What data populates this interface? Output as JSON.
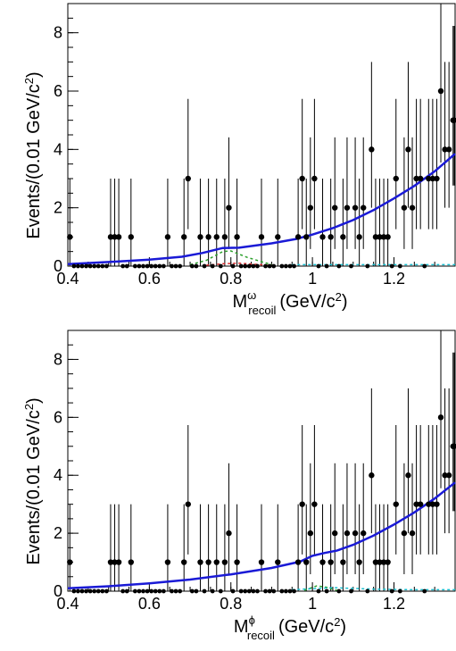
{
  "chart_data": [
    {
      "type": "scatter",
      "title": "",
      "xlabel_main": "M",
      "xlabel_sup": "ω",
      "xlabel_sub": "recoil",
      "xlabel_unit": "(GeV/c",
      "xlabel_unit_exp": "2",
      "xlabel_close": ")",
      "ylabel": "Events/(0.01 GeV/c",
      "ylabel_exp": "2",
      "ylabel_close": ")",
      "xlim": [
        0.4,
        1.35
      ],
      "ylim": [
        0,
        9
      ],
      "x_ticks": [
        0.4,
        0.6,
        0.8,
        1,
        1.2
      ],
      "x_tick_labels": [
        "0.4",
        "0.6",
        "0.8",
        "1",
        "1.2"
      ],
      "y_ticks": [
        0,
        2,
        4,
        6,
        8
      ],
      "y_tick_labels": [
        "0",
        "2",
        "4",
        "6",
        "8"
      ],
      "grid": false,
      "series": [
        {
          "kind": "data-points-with-errors",
          "color": "#000000",
          "points": [
            [
              0.405,
              1
            ],
            [
              0.505,
              1
            ],
            [
              0.515,
              1
            ],
            [
              0.525,
              1
            ],
            [
              0.555,
              1
            ],
            [
              0.645,
              1
            ],
            [
              0.685,
              1
            ],
            [
              0.695,
              3
            ],
            [
              0.725,
              1
            ],
            [
              0.745,
              1
            ],
            [
              0.765,
              1
            ],
            [
              0.785,
              1
            ],
            [
              0.795,
              2
            ],
            [
              0.815,
              1
            ],
            [
              0.875,
              1
            ],
            [
              0.915,
              1
            ],
            [
              0.965,
              1
            ],
            [
              0.975,
              3
            ],
            [
              0.985,
              1
            ],
            [
              0.995,
              2
            ],
            [
              1.005,
              3
            ],
            [
              1.025,
              1
            ],
            [
              1.045,
              1
            ],
            [
              1.055,
              2
            ],
            [
              1.075,
              1
            ],
            [
              1.085,
              2
            ],
            [
              1.105,
              2
            ],
            [
              1.115,
              1
            ],
            [
              1.125,
              2
            ],
            [
              1.145,
              4
            ],
            [
              1.155,
              1
            ],
            [
              1.165,
              1
            ],
            [
              1.175,
              1
            ],
            [
              1.185,
              1
            ],
            [
              1.205,
              3
            ],
            [
              1.225,
              2
            ],
            [
              1.235,
              4
            ],
            [
              1.245,
              2
            ],
            [
              1.255,
              3
            ],
            [
              1.265,
              3
            ],
            [
              1.285,
              3
            ],
            [
              1.295,
              3
            ],
            [
              1.305,
              3
            ],
            [
              1.315,
              6
            ],
            [
              1.325,
              4
            ],
            [
              1.335,
              4
            ],
            [
              1.345,
              5
            ],
            [
              1.355,
              5
            ]
          ]
        },
        {
          "kind": "total-fit",
          "color": "#1a1ad6",
          "points": [
            [
              0.4,
              0.07
            ],
            [
              0.5,
              0.14
            ],
            [
              0.6,
              0.22
            ],
            [
              0.68,
              0.32
            ],
            [
              0.73,
              0.45
            ],
            [
              0.78,
              0.62
            ],
            [
              0.82,
              0.63
            ],
            [
              0.9,
              0.78
            ],
            [
              0.96,
              0.93
            ],
            [
              1.0,
              1.08
            ],
            [
              1.05,
              1.3
            ],
            [
              1.1,
              1.58
            ],
            [
              1.15,
              1.92
            ],
            [
              1.2,
              2.32
            ],
            [
              1.25,
              2.75
            ],
            [
              1.3,
              3.25
            ],
            [
              1.35,
              3.85
            ]
          ]
        },
        {
          "kind": "omega-component",
          "color": "#2ca02c",
          "dashed": true,
          "points": [
            [
              0.7,
              0.05
            ],
            [
              0.74,
              0.2
            ],
            [
              0.78,
              0.5
            ],
            [
              0.8,
              0.52
            ],
            [
              0.84,
              0.3
            ],
            [
              0.9,
              0.05
            ]
          ]
        },
        {
          "kind": "phi-component",
          "color": "#d62728",
          "dashed": true,
          "points": [
            [
              0.74,
              0.03
            ],
            [
              0.78,
              0.08
            ],
            [
              0.82,
              0.1
            ],
            [
              0.86,
              0.06
            ],
            [
              0.9,
              0.02
            ]
          ]
        },
        {
          "kind": "other-component",
          "color": "#17becf",
          "dashed": true,
          "points": [
            [
              0.95,
              0.05
            ],
            [
              1.05,
              0.05
            ],
            [
              1.15,
              0.05
            ],
            [
              1.25,
              0.05
            ],
            [
              1.35,
              0.05
            ]
          ]
        }
      ]
    },
    {
      "type": "scatter",
      "title": "",
      "xlabel_main": "M",
      "xlabel_sup": "ϕ",
      "xlabel_sub": "recoil",
      "xlabel_unit": "(GeV/c",
      "xlabel_unit_exp": "2",
      "xlabel_close": ")",
      "ylabel": "Events/(0.01 GeV/c",
      "ylabel_exp": "2",
      "ylabel_close": ")",
      "xlim": [
        0.4,
        1.35
      ],
      "ylim": [
        0,
        9
      ],
      "x_ticks": [
        0.4,
        0.6,
        0.8,
        1,
        1.2
      ],
      "x_tick_labels": [
        "0.4",
        "0.6",
        "0.8",
        "1",
        "1.2"
      ],
      "y_ticks": [
        0,
        2,
        4,
        6,
        8
      ],
      "y_tick_labels": [
        "0",
        "2",
        "4",
        "6",
        "8"
      ],
      "grid": false,
      "series": [
        {
          "kind": "data-points-with-errors",
          "color": "#000000",
          "points": [
            [
              0.405,
              1
            ],
            [
              0.505,
              1
            ],
            [
              0.515,
              1
            ],
            [
              0.525,
              1
            ],
            [
              0.555,
              1
            ],
            [
              0.645,
              1
            ],
            [
              0.685,
              1
            ],
            [
              0.695,
              3
            ],
            [
              0.725,
              1
            ],
            [
              0.745,
              1
            ],
            [
              0.765,
              1
            ],
            [
              0.785,
              1
            ],
            [
              0.795,
              2
            ],
            [
              0.815,
              1
            ],
            [
              0.875,
              1
            ],
            [
              0.915,
              1
            ],
            [
              0.965,
              1
            ],
            [
              0.975,
              3
            ],
            [
              0.985,
              1
            ],
            [
              0.995,
              2
            ],
            [
              1.005,
              3
            ],
            [
              1.025,
              1
            ],
            [
              1.045,
              1
            ],
            [
              1.055,
              2
            ],
            [
              1.075,
              1
            ],
            [
              1.085,
              2
            ],
            [
              1.105,
              2
            ],
            [
              1.115,
              1
            ],
            [
              1.125,
              2
            ],
            [
              1.145,
              4
            ],
            [
              1.155,
              1
            ],
            [
              1.165,
              1
            ],
            [
              1.175,
              1
            ],
            [
              1.185,
              1
            ],
            [
              1.205,
              3
            ],
            [
              1.225,
              2
            ],
            [
              1.235,
              4
            ],
            [
              1.245,
              2
            ],
            [
              1.255,
              3
            ],
            [
              1.265,
              3
            ],
            [
              1.285,
              3
            ],
            [
              1.295,
              3
            ],
            [
              1.305,
              3
            ],
            [
              1.315,
              6
            ],
            [
              1.325,
              4
            ],
            [
              1.335,
              4
            ],
            [
              1.345,
              5
            ],
            [
              1.355,
              5
            ]
          ]
        },
        {
          "kind": "total-fit",
          "color": "#1a1ad6",
          "points": [
            [
              0.4,
              0.1
            ],
            [
              0.5,
              0.17
            ],
            [
              0.6,
              0.27
            ],
            [
              0.7,
              0.4
            ],
            [
              0.8,
              0.58
            ],
            [
              0.9,
              0.8
            ],
            [
              0.97,
              1.02
            ],
            [
              1.0,
              1.22
            ],
            [
              1.03,
              1.32
            ],
            [
              1.06,
              1.4
            ],
            [
              1.1,
              1.6
            ],
            [
              1.15,
              1.92
            ],
            [
              1.2,
              2.3
            ],
            [
              1.25,
              2.72
            ],
            [
              1.3,
              3.2
            ],
            [
              1.35,
              3.75
            ]
          ]
        },
        {
          "kind": "phi-component",
          "color": "#2ca02c",
          "dashed": true,
          "points": [
            [
              0.98,
              0.03
            ],
            [
              1.01,
              0.18
            ],
            [
              1.03,
              0.15
            ],
            [
              1.06,
              0.03
            ]
          ]
        },
        {
          "kind": "other-component",
          "color": "#17becf",
          "dashed": true,
          "points": [
            [
              0.95,
              0.05
            ],
            [
              1.05,
              0.12
            ],
            [
              1.15,
              0.07
            ],
            [
              1.25,
              0.05
            ],
            [
              1.35,
              0.05
            ]
          ]
        }
      ]
    }
  ]
}
